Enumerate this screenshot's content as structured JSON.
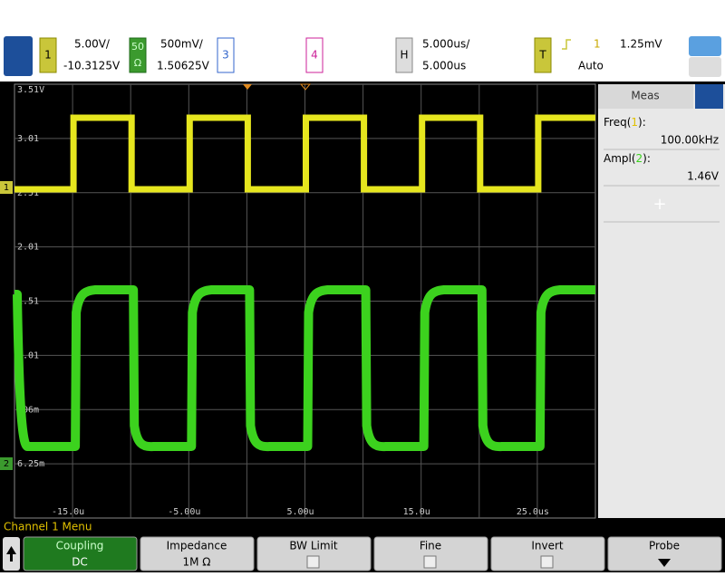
{
  "toolbar": {
    "ch1": {
      "number": "1",
      "scale": "5.00V/",
      "offset": "-10.3125V"
    },
    "ch2": {
      "badge_top": "50",
      "badge_bottom": "Ω",
      "scale": "500mV/",
      "offset": "1.50625V"
    },
    "ch3": {
      "number": "3"
    },
    "ch4": {
      "number": "4"
    },
    "horizontal": {
      "badge": "H",
      "scale": "5.000us/",
      "delay": "5.000us"
    },
    "trigger": {
      "badge": "T",
      "source": "1",
      "level": "1.25mV",
      "mode": "Auto"
    }
  },
  "plot": {
    "y_labels": [
      "3.51V",
      "3.01",
      "2.51",
      "2.01",
      "1.51",
      "1.01",
      "506m",
      "6.25m"
    ],
    "x_labels": [
      "-15.0u",
      "-5.00u",
      "5.00u",
      "15.0u",
      "25.0us"
    ],
    "ch2_marker": "2"
  },
  "meas": {
    "title": "Meas",
    "items": [
      {
        "name": "Freq(",
        "source": "1",
        "close": "):",
        "value": "100.00kHz"
      },
      {
        "name": "Ampl(",
        "source": "2",
        "close": "):",
        "value": "1.46V"
      }
    ]
  },
  "menu": {
    "title": "Channel 1 Menu",
    "buttons": [
      {
        "label": "Coupling",
        "value": "DC"
      },
      {
        "label": "Impedance",
        "value": "1M Ω"
      },
      {
        "label": "BW Limit"
      },
      {
        "label": "Fine"
      },
      {
        "label": "Invert"
      },
      {
        "label": "Probe"
      }
    ]
  }
}
